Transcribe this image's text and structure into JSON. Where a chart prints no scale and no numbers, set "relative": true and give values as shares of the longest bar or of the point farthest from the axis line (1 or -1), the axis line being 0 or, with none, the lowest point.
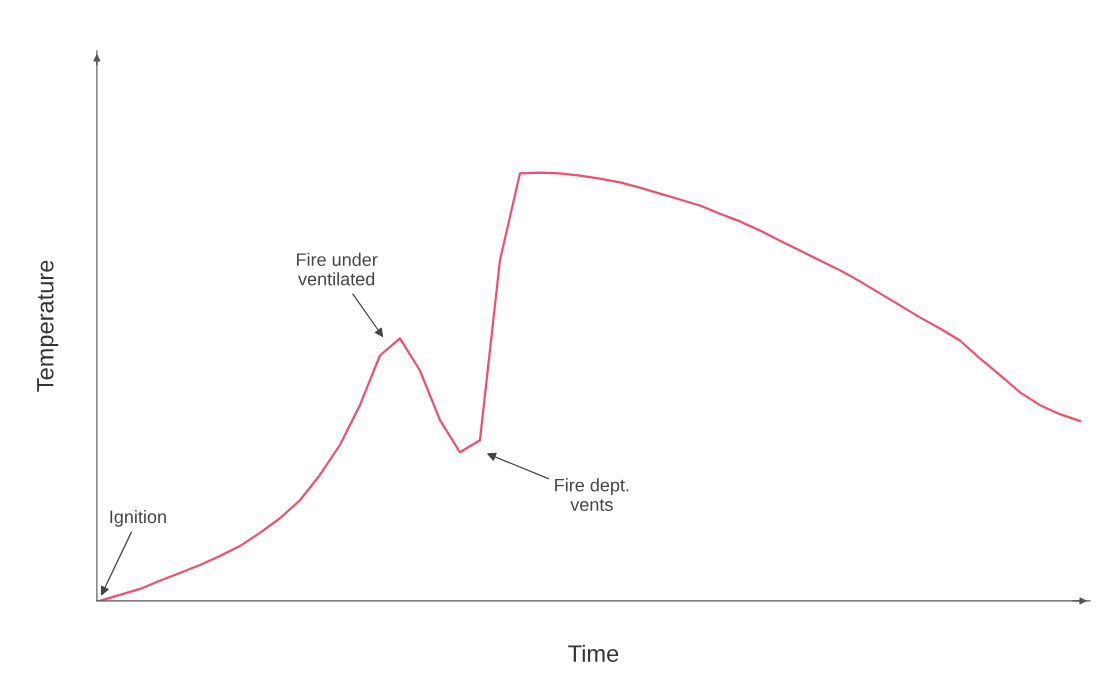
{
  "chart_data": {
    "type": "line",
    "relative": true,
    "xlabel": "Time",
    "ylabel": "Temperature",
    "categories": [
      null,
      null,
      null,
      null,
      null,
      null,
      null,
      null,
      null,
      null,
      null,
      null,
      null,
      null,
      null,
      null,
      null,
      null,
      null,
      null,
      null,
      null,
      null,
      null,
      null,
      null,
      null,
      null,
      null,
      null,
      null,
      null,
      null,
      null,
      null,
      null,
      null,
      null,
      null,
      null,
      null,
      null,
      null,
      null,
      null,
      null,
      null,
      null,
      null,
      null
    ],
    "series": [
      {
        "color": "#f0506e",
        "values": [
          0,
          0.014,
          0.028,
          0.047,
          0.065,
          0.084,
          0.105,
          0.128,
          0.159,
          0.193,
          0.235,
          0.294,
          0.364,
          0.457,
          0.573,
          0.613,
          0.538,
          0.422,
          0.347,
          0.375,
          0.795,
          0.998,
          1.0,
          0.998,
          0.993,
          0.986,
          0.977,
          0.965,
          0.951,
          0.937,
          0.923,
          0.904,
          0.886,
          0.865,
          0.841,
          0.818,
          0.795,
          0.772,
          0.746,
          0.718,
          0.69,
          0.662,
          0.636,
          0.608,
          0.566,
          0.527,
          0.487,
          0.457,
          0.436,
          0.42
        ]
      }
    ],
    "annotations": [
      "Ignition",
      "Fire under\nventilated",
      "Fire dept.\nvents"
    ],
    "grid": false,
    "legend": false,
    "marker": "none",
    "line_style": "solid"
  }
}
